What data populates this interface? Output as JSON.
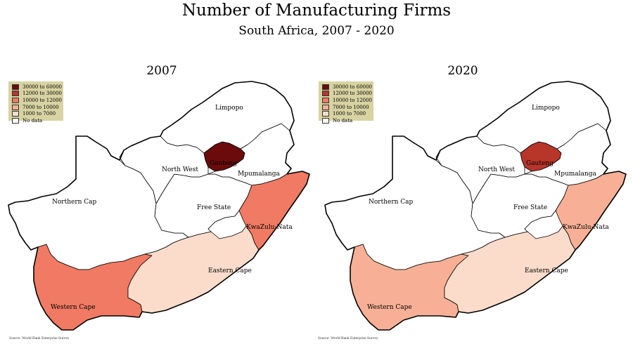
{
  "title": "Number of Manufacturing Firms",
  "subtitle": "South Africa, 2007 - 2020",
  "source": "Source: World Bank Enterprise Survey",
  "legend": [
    {
      "label": "30000 to 60000",
      "color": "#6b0b0b"
    },
    {
      "label": "12000 to 30000",
      "color": "#b8352a"
    },
    {
      "label": "10000 to 12000",
      "color": "#f07a63"
    },
    {
      "label": "7000 to 10000",
      "color": "#f7b096"
    },
    {
      "label": "1000 to 7000",
      "color": "#fbdccb"
    },
    {
      "label": "No data",
      "color": "#ffffff"
    }
  ],
  "provinces": {
    "limpopo": "Limpopo",
    "north_west": "North West",
    "gauteng": "Gauteng",
    "mpumalanga": "Mpumalanga",
    "northern_cape": "Northern Cap",
    "free_state": "Free State",
    "kwazulu_natal": "KwaZulu-Nata",
    "eastern_cape": "Eastern Cape",
    "western_cape": "Western Cape"
  },
  "maps": [
    {
      "year": "2007",
      "fills": {
        "gauteng": "#6b0b0b",
        "kwazulu_natal": "#f07a63",
        "western_cape": "#f07a63",
        "eastern_cape": "#fbdccb",
        "limpopo": "#ffffff",
        "north_west": "#ffffff",
        "mpumalanga": "#ffffff",
        "northern_cape": "#ffffff",
        "free_state": "#ffffff"
      }
    },
    {
      "year": "2020",
      "fills": {
        "gauteng": "#b8352a",
        "kwazulu_natal": "#f7b096",
        "western_cape": "#f7b096",
        "eastern_cape": "#fbdccb",
        "limpopo": "#ffffff",
        "north_west": "#ffffff",
        "mpumalanga": "#ffffff",
        "northern_cape": "#ffffff",
        "free_state": "#ffffff"
      }
    }
  ]
}
